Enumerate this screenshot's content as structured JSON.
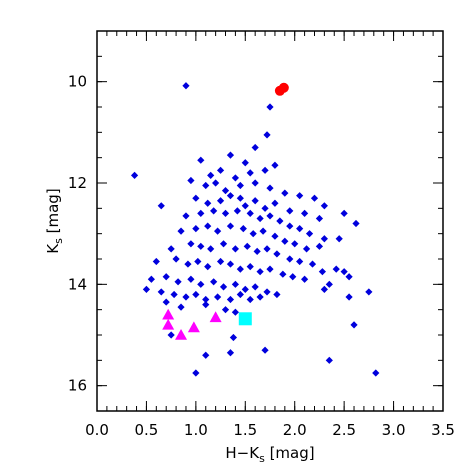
{
  "chart_data": {
    "type": "scatter",
    "title": "",
    "xlabel": "H−K",
    "xlabel_sub": "s",
    "xlabel_unit": " [mag]",
    "ylabel": "K",
    "ylabel_sub": "s",
    "ylabel_unit": " [mag]",
    "xlim": [
      0.0,
      3.5
    ],
    "ylim": [
      16.5,
      9.0
    ],
    "y_inverted": true,
    "grid": false,
    "xticks": [
      0.0,
      0.5,
      1.0,
      1.5,
      2.0,
      2.5,
      3.0,
      3.5
    ],
    "xtick_labels": [
      "0.0",
      "0.5",
      "1.0",
      "1.5",
      "2.0",
      "2.5",
      "3.0",
      "3.5"
    ],
    "yticks": [
      10,
      12,
      14,
      16
    ],
    "ytick_labels": [
      "10",
      "12",
      "14",
      "16"
    ],
    "series": [
      {
        "marker": "diamond",
        "color": "#0000dd",
        "points": [
          [
            0.38,
            11.85
          ],
          [
            0.65,
            12.45
          ],
          [
            0.9,
            10.08
          ],
          [
            1.75,
            10.5
          ],
          [
            1.72,
            11.05
          ],
          [
            1.6,
            11.3
          ],
          [
            1.05,
            11.55
          ],
          [
            1.35,
            11.45
          ],
          [
            1.5,
            11.6
          ],
          [
            1.15,
            11.85
          ],
          [
            1.25,
            11.75
          ],
          [
            1.4,
            11.9
          ],
          [
            1.55,
            11.8
          ],
          [
            1.7,
            11.75
          ],
          [
            1.8,
            11.65
          ],
          [
            0.95,
            11.95
          ],
          [
            1.1,
            12.05
          ],
          [
            1.2,
            12.0
          ],
          [
            1.45,
            12.05
          ],
          [
            1.3,
            12.15
          ],
          [
            1.6,
            12.0
          ],
          [
            1.75,
            12.1
          ],
          [
            1.9,
            12.2
          ],
          [
            2.05,
            12.25
          ],
          [
            2.2,
            12.3
          ],
          [
            2.3,
            12.45
          ],
          [
            1.0,
            12.3
          ],
          [
            1.12,
            12.4
          ],
          [
            1.25,
            12.35
          ],
          [
            1.35,
            12.25
          ],
          [
            1.45,
            12.3
          ],
          [
            1.5,
            12.45
          ],
          [
            1.6,
            12.35
          ],
          [
            1.7,
            12.5
          ],
          [
            1.8,
            12.4
          ],
          [
            1.95,
            12.55
          ],
          [
            2.1,
            12.6
          ],
          [
            2.25,
            12.7
          ],
          [
            0.9,
            12.65
          ],
          [
            1.05,
            12.6
          ],
          [
            1.18,
            12.55
          ],
          [
            1.3,
            12.6
          ],
          [
            1.42,
            12.55
          ],
          [
            1.55,
            12.6
          ],
          [
            1.65,
            12.7
          ],
          [
            1.75,
            12.65
          ],
          [
            1.85,
            12.75
          ],
          [
            1.95,
            12.85
          ],
          [
            2.05,
            12.9
          ],
          [
            2.15,
            13.0
          ],
          [
            2.3,
            13.1
          ],
          [
            2.5,
            12.6
          ],
          [
            2.62,
            12.8
          ],
          [
            0.85,
            12.95
          ],
          [
            1.0,
            12.9
          ],
          [
            1.12,
            12.85
          ],
          [
            1.22,
            12.95
          ],
          [
            1.35,
            12.85
          ],
          [
            1.48,
            12.9
          ],
          [
            1.58,
            13.0
          ],
          [
            1.68,
            12.95
          ],
          [
            1.8,
            13.05
          ],
          [
            1.9,
            13.15
          ],
          [
            2.0,
            13.2
          ],
          [
            2.12,
            13.3
          ],
          [
            2.25,
            13.25
          ],
          [
            2.45,
            13.1
          ],
          [
            0.75,
            13.3
          ],
          [
            0.95,
            13.2
          ],
          [
            1.05,
            13.25
          ],
          [
            1.15,
            13.3
          ],
          [
            1.28,
            13.2
          ],
          [
            1.4,
            13.3
          ],
          [
            1.52,
            13.25
          ],
          [
            1.62,
            13.35
          ],
          [
            1.72,
            13.3
          ],
          [
            1.82,
            13.4
          ],
          [
            1.95,
            13.5
          ],
          [
            2.05,
            13.55
          ],
          [
            2.18,
            13.6
          ],
          [
            2.28,
            13.75
          ],
          [
            0.6,
            13.55
          ],
          [
            0.8,
            13.5
          ],
          [
            0.92,
            13.6
          ],
          [
            1.02,
            13.55
          ],
          [
            1.12,
            13.65
          ],
          [
            1.25,
            13.55
          ],
          [
            1.35,
            13.6
          ],
          [
            1.45,
            13.7
          ],
          [
            1.55,
            13.65
          ],
          [
            1.65,
            13.75
          ],
          [
            1.75,
            13.7
          ],
          [
            1.88,
            13.8
          ],
          [
            1.98,
            13.85
          ],
          [
            2.1,
            13.9
          ],
          [
            2.42,
            13.7
          ],
          [
            2.5,
            13.75
          ],
          [
            0.55,
            13.9
          ],
          [
            0.7,
            13.85
          ],
          [
            0.82,
            13.95
          ],
          [
            0.95,
            13.9
          ],
          [
            1.05,
            14.0
          ],
          [
            1.18,
            13.95
          ],
          [
            1.28,
            14.05
          ],
          [
            1.4,
            14.0
          ],
          [
            1.5,
            14.1
          ],
          [
            1.6,
            14.05
          ],
          [
            1.72,
            14.15
          ],
          [
            1.82,
            14.2
          ],
          [
            2.35,
            14.0
          ],
          [
            2.55,
            13.85
          ],
          [
            0.5,
            14.1
          ],
          [
            0.65,
            14.15
          ],
          [
            0.78,
            14.2
          ],
          [
            0.9,
            14.25
          ],
          [
            1.0,
            14.2
          ],
          [
            1.1,
            14.3
          ],
          [
            1.22,
            14.25
          ],
          [
            1.35,
            14.3
          ],
          [
            1.45,
            14.2
          ],
          [
            1.55,
            14.3
          ],
          [
            1.65,
            14.25
          ],
          [
            2.3,
            14.1
          ],
          [
            2.55,
            14.25
          ],
          [
            2.75,
            14.15
          ],
          [
            0.7,
            14.35
          ],
          [
            0.85,
            14.45
          ],
          [
            1.1,
            14.4
          ],
          [
            1.3,
            14.5
          ],
          [
            1.4,
            14.55
          ],
          [
            2.6,
            14.8
          ],
          [
            0.75,
            15.0
          ],
          [
            1.38,
            15.05
          ],
          [
            1.1,
            15.4
          ],
          [
            1.35,
            15.35
          ],
          [
            1.7,
            15.3
          ],
          [
            2.35,
            15.5
          ],
          [
            1.0,
            15.75
          ],
          [
            2.82,
            15.75
          ]
        ]
      },
      {
        "marker": "circle",
        "color": "#ff0000",
        "points": [
          [
            1.85,
            10.18
          ],
          [
            1.89,
            10.12
          ]
        ]
      },
      {
        "marker": "triangle",
        "color": "#ff00ff",
        "points": [
          [
            0.72,
            14.6
          ],
          [
            0.72,
            14.8
          ],
          [
            0.85,
            15.0
          ],
          [
            0.98,
            14.85
          ],
          [
            1.2,
            14.65
          ]
        ]
      },
      {
        "marker": "square",
        "color": "#00ffff",
        "points": [
          [
            1.5,
            14.68
          ]
        ]
      }
    ]
  }
}
